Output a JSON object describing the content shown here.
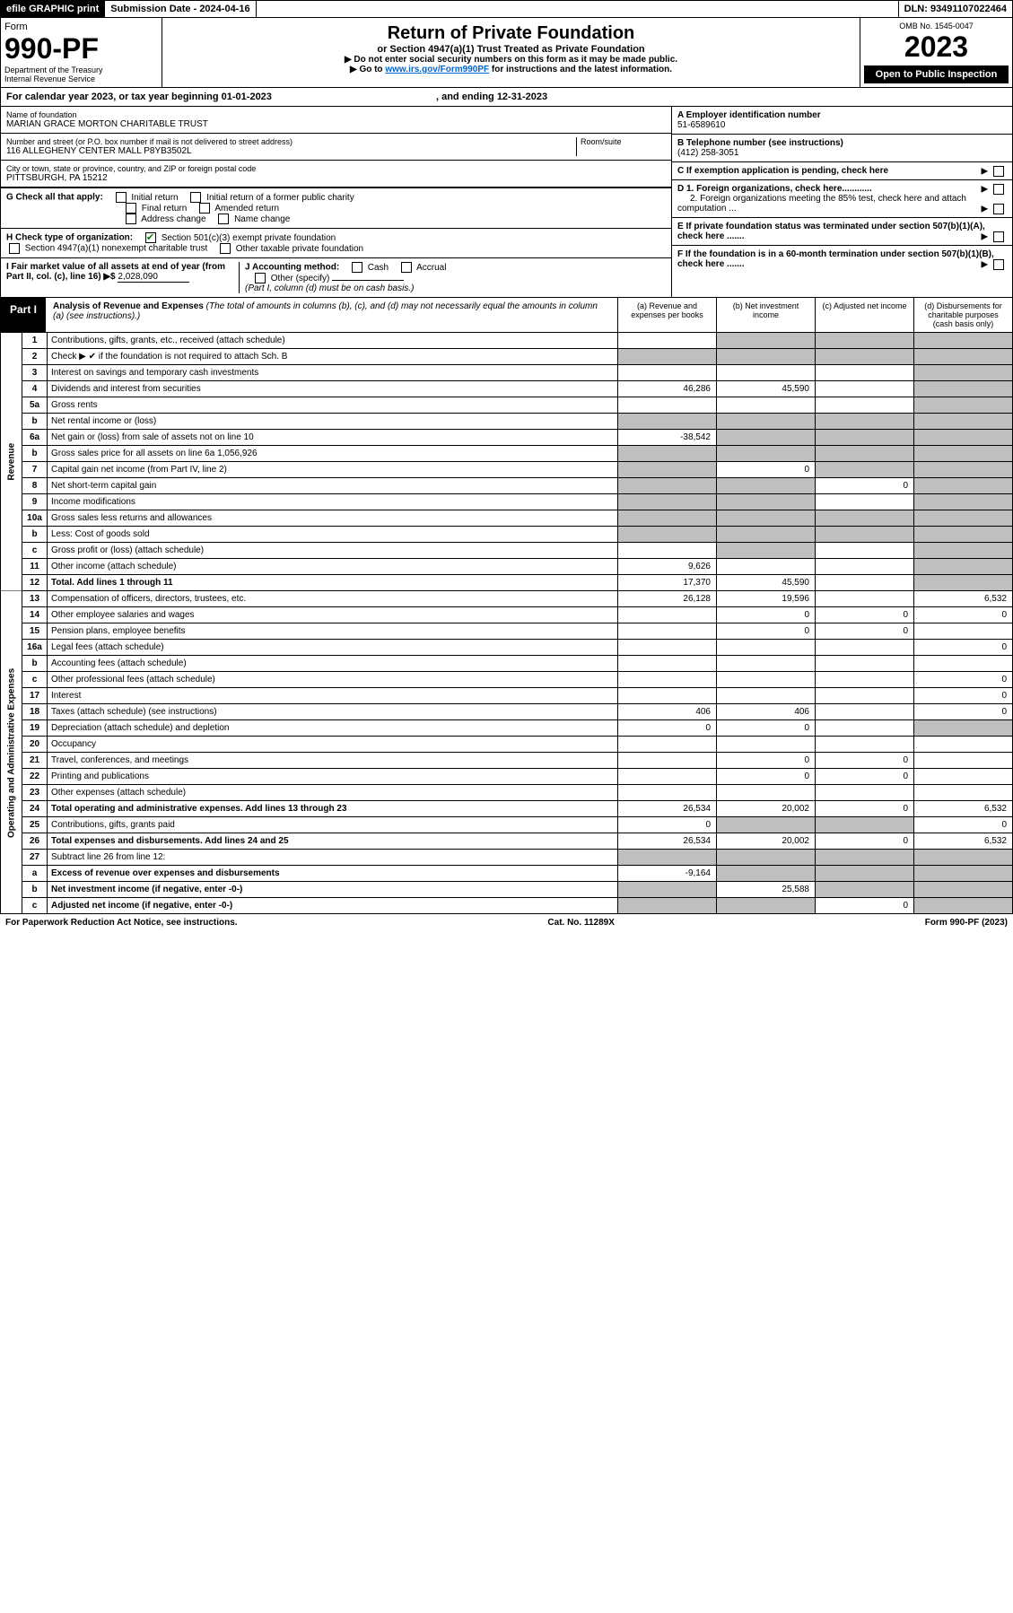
{
  "top": {
    "efile": "efile GRAPHIC print",
    "submission": "Submission Date - 2024-04-16",
    "dln": "DLN: 93491107022464"
  },
  "header": {
    "form": "Form",
    "formnum": "990-PF",
    "dept": "Department of the Treasury",
    "irs": "Internal Revenue Service",
    "title": "Return of Private Foundation",
    "subtitle": "or Section 4947(a)(1) Trust Treated as Private Foundation",
    "note1": "▶ Do not enter social security numbers on this form as it may be made public.",
    "note2_prefix": "▶ Go to ",
    "note2_link": "www.irs.gov/Form990PF",
    "note2_suffix": " for instructions and the latest information.",
    "omb": "OMB No. 1545-0047",
    "year": "2023",
    "open": "Open to Public Inspection"
  },
  "calyear": "For calendar year 2023, or tax year beginning 01-01-2023",
  "calyear_end": ", and ending 12-31-2023",
  "name_label": "Name of foundation",
  "name": "MARIAN GRACE MORTON CHARITABLE TRUST",
  "addr_label": "Number and street (or P.O. box number if mail is not delivered to street address)",
  "addr": "116 ALLEGHENY CENTER MALL P8YB3502L",
  "room_label": "Room/suite",
  "city_label": "City or town, state or province, country, and ZIP or foreign postal code",
  "city": "PITTSBURGH, PA  15212",
  "einA": "A Employer identification number",
  "ein": "51-6589610",
  "telB": "B Telephone number (see instructions)",
  "tel": "(412) 258-3051",
  "C": "C If exemption application is pending, check here",
  "D1": "D 1. Foreign organizations, check here............",
  "D2": "2. Foreign organizations meeting the 85% test, check here and attach computation ...",
  "E": "E If private foundation status was terminated under section 507(b)(1)(A), check here .......",
  "F": "F If the foundation is in a 60-month termination under section 507(b)(1)(B), check here .......",
  "G": {
    "label": "G Check all that apply:",
    "initial": "Initial return",
    "initial_pc": "Initial return of a former public charity",
    "final": "Final return",
    "amended": "Amended return",
    "addr_change": "Address change",
    "name_change": "Name change"
  },
  "H": {
    "label": "H Check type of organization:",
    "s501": "Section 501(c)(3) exempt private foundation",
    "s4947": "Section 4947(a)(1) nonexempt charitable trust",
    "other_tax": "Other taxable private foundation"
  },
  "I": {
    "label": "I Fair market value of all assets at end of year (from Part II, col. (c), line 16) ▶$",
    "value": "2,028,090"
  },
  "J": {
    "label": "J Accounting method:",
    "cash": "Cash",
    "accrual": "Accrual",
    "other": "Other (specify)",
    "note": "(Part I, column (d) must be on cash basis.)"
  },
  "part1": {
    "label": "Part I",
    "title": "Analysis of Revenue and Expenses",
    "title_note": " (The total of amounts in columns (b), (c), and (d) may not necessarily equal the amounts in column (a) (see instructions).)",
    "cola": "(a) Revenue and expenses per books",
    "colb": "(b) Net investment income",
    "colc": "(c) Adjusted net income",
    "cold": "(d) Disbursements for charitable purposes (cash basis only)"
  },
  "rev_label": "Revenue",
  "exp_label": "Operating and Administrative Expenses",
  "rows": {
    "r1": {
      "n": "1",
      "d": "",
      "a": "",
      "b": "",
      "c": "",
      "sh_b": true,
      "sh_c": true,
      "sh_d": true
    },
    "r2": {
      "n": "2",
      "d": "",
      "a": "",
      "b": "",
      "c": "",
      "sh_a": true,
      "sh_b": true,
      "sh_c": true,
      "sh_d": true
    },
    "r3": {
      "n": "3",
      "d": "",
      "a": "",
      "b": "",
      "c": "",
      "sh_d": true
    },
    "r4": {
      "n": "4",
      "d": "",
      "a": "46,286",
      "b": "45,590",
      "c": "",
      "sh_d": true
    },
    "r5a": {
      "n": "5a",
      "d": "",
      "a": "",
      "b": "",
      "c": "",
      "sh_d": true
    },
    "r5b": {
      "n": "b",
      "d": "",
      "a": "",
      "b": "",
      "c": "",
      "sh_a": true,
      "sh_b": true,
      "sh_c": true,
      "sh_d": true
    },
    "r6a": {
      "n": "6a",
      "d": "",
      "a": "-38,542",
      "b": "",
      "c": "",
      "sh_b": true,
      "sh_c": true,
      "sh_d": true
    },
    "r6b": {
      "n": "b",
      "d": "",
      "v": "1,056,926",
      "a": "",
      "b": "",
      "c": "",
      "sh_a": true,
      "sh_b": true,
      "sh_c": true,
      "sh_d": true
    },
    "r7": {
      "n": "7",
      "d": "",
      "a": "",
      "b": "0",
      "c": "",
      "sh_a": true,
      "sh_c": true,
      "sh_d": true
    },
    "r8": {
      "n": "8",
      "d": "",
      "a": "",
      "b": "",
      "c": "0",
      "sh_a": true,
      "sh_b": true,
      "sh_d": true
    },
    "r9": {
      "n": "9",
      "d": "",
      "a": "",
      "b": "",
      "c": "",
      "sh_a": true,
      "sh_b": true,
      "sh_d": true
    },
    "r10a": {
      "n": "10a",
      "d": "",
      "a": "",
      "b": "",
      "c": "",
      "sh_a": true,
      "sh_b": true,
      "sh_c": true,
      "sh_d": true
    },
    "r10b": {
      "n": "b",
      "d": "",
      "a": "",
      "b": "",
      "c": "",
      "sh_a": true,
      "sh_b": true,
      "sh_c": true,
      "sh_d": true
    },
    "r10c": {
      "n": "c",
      "d": "",
      "a": "",
      "b": "",
      "c": "",
      "sh_b": true,
      "sh_d": true
    },
    "r11": {
      "n": "11",
      "d": "",
      "a": "9,626",
      "b": "",
      "c": "",
      "sh_d": true
    },
    "r12": {
      "n": "12",
      "d": "",
      "a": "17,370",
      "b": "45,590",
      "c": "",
      "bold": true,
      "sh_d": true
    },
    "r13": {
      "n": "13",
      "d": "6,532",
      "a": "26,128",
      "b": "19,596",
      "c": ""
    },
    "r14": {
      "n": "14",
      "d": "0",
      "a": "",
      "b": "0",
      "c": "0"
    },
    "r15": {
      "n": "15",
      "d": "",
      "a": "",
      "b": "0",
      "c": "0"
    },
    "r16a": {
      "n": "16a",
      "d": "0",
      "a": "",
      "b": "",
      "c": ""
    },
    "r16b": {
      "n": "b",
      "d": "",
      "a": "",
      "b": "",
      "c": ""
    },
    "r16c": {
      "n": "c",
      "d": "0",
      "a": "",
      "b": "",
      "c": ""
    },
    "r17": {
      "n": "17",
      "d": "0",
      "a": "",
      "b": "",
      "c": ""
    },
    "r18": {
      "n": "18",
      "d": "0",
      "a": "406",
      "b": "406",
      "c": ""
    },
    "r19": {
      "n": "19",
      "d": "",
      "a": "0",
      "b": "0",
      "c": "",
      "sh_d": true
    },
    "r20": {
      "n": "20",
      "d": "",
      "a": "",
      "b": "",
      "c": ""
    },
    "r21": {
      "n": "21",
      "d": "",
      "a": "",
      "b": "0",
      "c": "0"
    },
    "r22": {
      "n": "22",
      "d": "",
      "a": "",
      "b": "0",
      "c": "0"
    },
    "r23": {
      "n": "23",
      "d": "",
      "a": "",
      "b": "",
      "c": ""
    },
    "r24": {
      "n": "24",
      "d": "6,532",
      "a": "26,534",
      "b": "20,002",
      "c": "0",
      "bold": true
    },
    "r25": {
      "n": "25",
      "d": "0",
      "a": "0",
      "b": "",
      "c": "",
      "sh_b": true,
      "sh_c": true
    },
    "r26": {
      "n": "26",
      "d": "6,532",
      "a": "26,534",
      "b": "20,002",
      "c": "0",
      "bold": true
    },
    "r27": {
      "n": "27",
      "d": "",
      "a": "",
      "b": "",
      "c": "",
      "sh_a": true,
      "sh_b": true,
      "sh_c": true,
      "sh_d": true
    },
    "r27a": {
      "n": "a",
      "d": "",
      "a": "-9,164",
      "b": "",
      "c": "",
      "bold": true,
      "sh_b": true,
      "sh_c": true,
      "sh_d": true
    },
    "r27b": {
      "n": "b",
      "d": "",
      "a": "",
      "b": "25,588",
      "c": "",
      "bold": true,
      "sh_a": true,
      "sh_c": true,
      "sh_d": true
    },
    "r27c": {
      "n": "c",
      "d": "",
      "a": "",
      "b": "",
      "c": "0",
      "bold": true,
      "sh_a": true,
      "sh_b": true,
      "sh_d": true
    }
  },
  "footer": {
    "pra": "For Paperwork Reduction Act Notice, see instructions.",
    "cat": "Cat. No. 11289X",
    "form": "Form 990-PF (2023)"
  }
}
